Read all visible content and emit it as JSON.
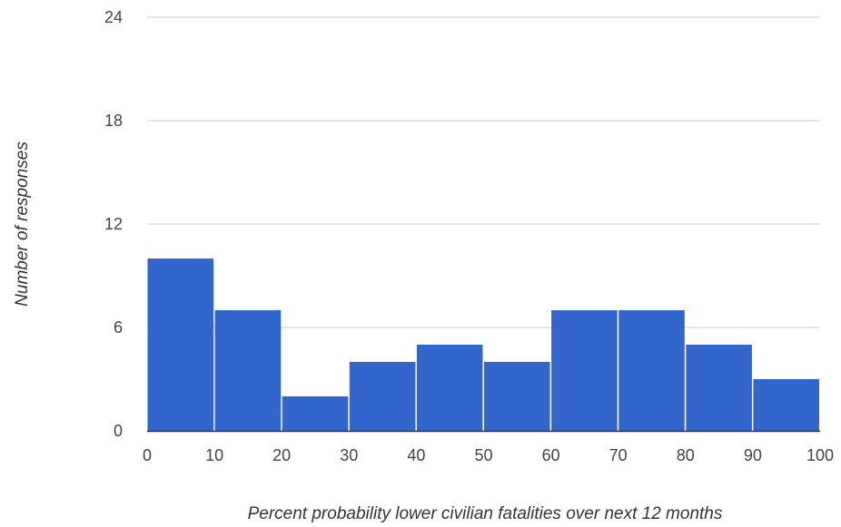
{
  "chart_data": {
    "type": "bar",
    "variant": "histogram",
    "title": "",
    "xlabel": "Percent probability lower civilian fatalities over next 12 months",
    "ylabel": "Number of responses",
    "bin_edges": [
      0,
      10,
      20,
      30,
      40,
      50,
      60,
      70,
      80,
      90,
      100
    ],
    "values": [
      10,
      7,
      2,
      4,
      5,
      4,
      7,
      7,
      5,
      3
    ],
    "xlim": [
      0,
      100
    ],
    "ylim": [
      0,
      24
    ],
    "x_ticks": [
      "0",
      "10",
      "20",
      "30",
      "40",
      "50",
      "60",
      "70",
      "80",
      "90",
      "100"
    ],
    "y_ticks": [
      "0",
      "6",
      "12",
      "18",
      "24"
    ],
    "grid": "horizontal",
    "legend": "none",
    "colors": {
      "bar": "#3366cc",
      "grid": "#cccccc",
      "axis": "#333333"
    }
  }
}
